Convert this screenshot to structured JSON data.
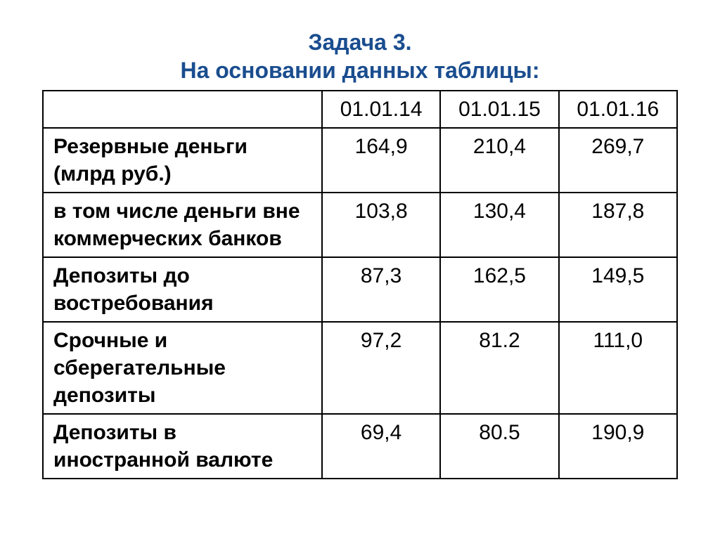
{
  "title": {
    "line1": "Задача 3.",
    "line2": "На основании данных таблицы:"
  },
  "table": {
    "columns": [
      "",
      "01.01.14",
      "01.01.15",
      "01.01.16"
    ],
    "rows": [
      {
        "label": "Резервные деньги (млрд руб.)",
        "values": [
          "164,9",
          "210,4",
          "269,7"
        ]
      },
      {
        "label": "в том числе деньги вне коммерческих банков",
        "values": [
          "103,8",
          "130,4",
          "187,8"
        ]
      },
      {
        "label": "Депозиты до востребования",
        "values": [
          "87,3",
          "162,5",
          "149,5"
        ]
      },
      {
        "label": "Срочные и сберегательные депозиты",
        "values": [
          "97,2",
          "81.2",
          "111,0"
        ]
      },
      {
        "label": "Депозиты в иностранной валюте",
        "values": [
          "69,4",
          "80.5",
          "190,9"
        ]
      }
    ]
  },
  "styles": {
    "title_color": "#1a4d8f",
    "title_fontsize": 32,
    "title_fontweight": "bold",
    "cell_fontsize": 30,
    "cell_text_color": "#000000",
    "border_color": "#000000",
    "border_width": 2,
    "background_color": "#ffffff",
    "label_col_width_pct": 44,
    "data_col_width_pct": 18.66,
    "font_family": "Arial"
  }
}
